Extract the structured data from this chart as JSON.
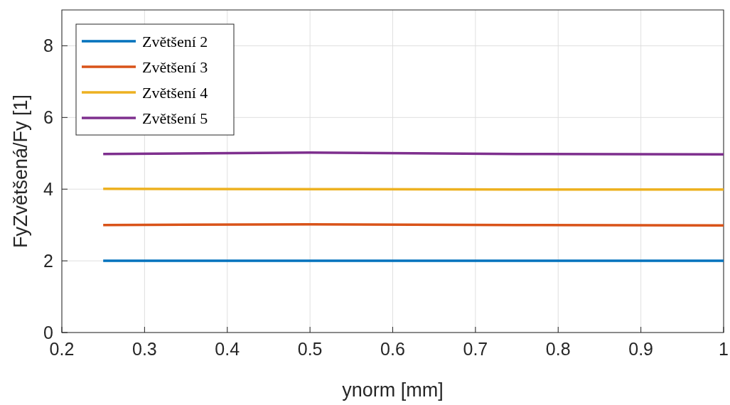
{
  "chart_data": {
    "type": "line",
    "xlabel": "ynorm [mm]",
    "ylabel": "FyZvětšená/Fy [1]",
    "x": [
      0.25,
      0.5,
      0.75,
      1
    ],
    "series": [
      {
        "name": "Zvětšení 2",
        "color": "#0072bd",
        "values": [
          2,
          2,
          2,
          2
        ]
      },
      {
        "name": "Zvětšení 3",
        "color": "#d95319",
        "values": [
          3,
          3.02,
          3,
          2.99
        ]
      },
      {
        "name": "Zvětšení 4",
        "color": "#edb120",
        "values": [
          4.01,
          4,
          3.99,
          3.99
        ]
      },
      {
        "name": "Zvětšení 5",
        "color": "#7e2f8e",
        "values": [
          4.98,
          5.02,
          4.98,
          4.97
        ]
      }
    ],
    "xlim": [
      0.2,
      1
    ],
    "xticks": [
      0.2,
      0.3,
      0.4,
      0.5,
      0.6,
      0.7,
      0.8,
      0.9,
      1
    ],
    "ylim": [
      0,
      9
    ],
    "yticks": [
      0,
      2,
      4,
      6,
      8
    ],
    "grid": true,
    "legend": "top left",
    "marker": "none",
    "line_style": "solid"
  }
}
